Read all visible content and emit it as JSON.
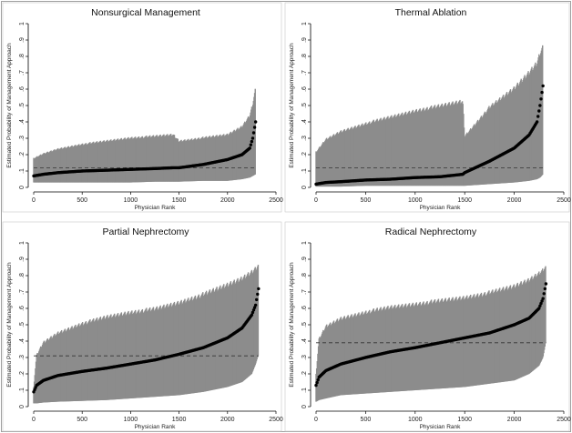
{
  "colors": {
    "figure_border": "#a0a0a0",
    "panel_background": "#ffffff",
    "interval_band": "#8c8c8c",
    "estimate_points": "#000000",
    "reference_line": "#333333",
    "axis": "#000000"
  },
  "chart_data": [
    {
      "type": "scatter",
      "title": "Nonsurgical Management",
      "xlabel": "Physician Rank",
      "ylabel": "Estimated Probability of Management Approach",
      "xlim": [
        0,
        2500
      ],
      "ylim": [
        0,
        1
      ],
      "x_ticks": [
        0,
        500,
        1000,
        1500,
        2000,
        2500
      ],
      "x_tick_labels": [
        "0",
        "500",
        "1000",
        "1500",
        "2000",
        "2500"
      ],
      "y_ticks": [
        0,
        0.1,
        0.2,
        0.3,
        0.4,
        0.5,
        0.6,
        0.7,
        0.8,
        0.9,
        1
      ],
      "y_tick_labels": [
        "0",
        ".1",
        ".2",
        ".3",
        ".4",
        ".5",
        ".6",
        ".7",
        ".8",
        ".9",
        "1"
      ],
      "grid": false,
      "reference_line": 0.12,
      "series": [
        {
          "x": [
            0,
            100,
            250,
            500,
            750,
            1000,
            1250,
            1440,
            1500,
            1750,
            2000,
            2150,
            2230,
            2260,
            2290
          ],
          "estimate": [
            0.07,
            0.08,
            0.09,
            0.1,
            0.105,
            0.11,
            0.115,
            0.12,
            0.12,
            0.14,
            0.17,
            0.2,
            0.24,
            0.3,
            0.4
          ],
          "lower": [
            0.03,
            0.03,
            0.03,
            0.03,
            0.03,
            0.03,
            0.035,
            0.035,
            0.035,
            0.04,
            0.04,
            0.05,
            0.06,
            0.07,
            0.08
          ],
          "upper": [
            0.18,
            0.21,
            0.24,
            0.27,
            0.29,
            0.31,
            0.32,
            0.33,
            0.29,
            0.31,
            0.33,
            0.38,
            0.45,
            0.52,
            0.62
          ]
        }
      ]
    },
    {
      "type": "scatter",
      "title": "Thermal Ablation",
      "xlabel": "Physician Rank",
      "ylabel": "Estimated Probability of Management Approach",
      "xlim": [
        0,
        2500
      ],
      "ylim": [
        0,
        1
      ],
      "x_ticks": [
        0,
        500,
        1000,
        1500,
        2000,
        2500
      ],
      "x_tick_labels": [
        "0",
        "500",
        "1000",
        "1500",
        "2000",
        "2500"
      ],
      "y_ticks": [
        0,
        0.1,
        0.2,
        0.3,
        0.4,
        0.5,
        0.6,
        0.7,
        0.8,
        0.9,
        1
      ],
      "y_tick_labels": [
        "0",
        ".1",
        ".2",
        ".3",
        ".4",
        ".5",
        ".6",
        ".7",
        ".8",
        ".9",
        "1"
      ],
      "grid": false,
      "reference_line": 0.12,
      "series": [
        {
          "x": [
            0,
            100,
            250,
            500,
            750,
            1000,
            1250,
            1480,
            1500,
            1750,
            2000,
            2150,
            2230,
            2260,
            2290
          ],
          "estimate": [
            0.02,
            0.03,
            0.035,
            0.045,
            0.05,
            0.06,
            0.065,
            0.08,
            0.09,
            0.16,
            0.24,
            0.32,
            0.4,
            0.5,
            0.62
          ],
          "lower": [
            0.005,
            0.005,
            0.005,
            0.01,
            0.01,
            0.01,
            0.01,
            0.01,
            0.01,
            0.02,
            0.03,
            0.04,
            0.05,
            0.06,
            0.08
          ],
          "upper": [
            0.22,
            0.3,
            0.35,
            0.4,
            0.44,
            0.48,
            0.51,
            0.54,
            0.32,
            0.5,
            0.62,
            0.72,
            0.78,
            0.84,
            0.88
          ]
        }
      ]
    },
    {
      "type": "scatter",
      "title": "Partial Nephrectomy",
      "xlabel": "Physician Rank",
      "ylabel": "Estimated Probability of Management Approach",
      "xlim": [
        0,
        2500
      ],
      "ylim": [
        0,
        1
      ],
      "x_ticks": [
        0,
        500,
        1000,
        1500,
        2000,
        2500
      ],
      "x_tick_labels": [
        "0",
        "500",
        "1000",
        "1500",
        "2000",
        "2500"
      ],
      "y_ticks": [
        0,
        0.1,
        0.2,
        0.3,
        0.4,
        0.5,
        0.6,
        0.7,
        0.8,
        0.9,
        1
      ],
      "y_tick_labels": [
        "0",
        ".1",
        ".2",
        ".3",
        ".4",
        ".5",
        ".6",
        ".7",
        ".8",
        ".9",
        "1"
      ],
      "grid": false,
      "reference_line": 0.31,
      "series": [
        {
          "x": [
            0,
            30,
            100,
            250,
            500,
            750,
            1000,
            1250,
            1500,
            1750,
            2000,
            2150,
            2250,
            2290,
            2320
          ],
          "estimate": [
            0.09,
            0.13,
            0.16,
            0.19,
            0.215,
            0.235,
            0.26,
            0.285,
            0.32,
            0.36,
            0.42,
            0.48,
            0.56,
            0.62,
            0.72
          ],
          "lower": [
            0.02,
            0.02,
            0.025,
            0.03,
            0.035,
            0.04,
            0.05,
            0.06,
            0.07,
            0.09,
            0.12,
            0.15,
            0.2,
            0.26,
            0.32
          ],
          "upper": [
            0.12,
            0.32,
            0.4,
            0.46,
            0.52,
            0.56,
            0.59,
            0.61,
            0.65,
            0.7,
            0.76,
            0.8,
            0.84,
            0.86,
            0.88
          ]
        }
      ]
    },
    {
      "type": "scatter",
      "title": "Radical Nephrectomy",
      "xlabel": "Physician Rank",
      "ylabel": "Estimated Probability of Management Approach",
      "xlim": [
        0,
        2500
      ],
      "ylim": [
        0,
        1
      ],
      "x_ticks": [
        0,
        500,
        1000,
        1500,
        2000,
        2500
      ],
      "x_tick_labels": [
        "0",
        "500",
        "1000",
        "1500",
        "2000",
        "2500"
      ],
      "y_ticks": [
        0,
        0.1,
        0.2,
        0.3,
        0.4,
        0.5,
        0.6,
        0.7,
        0.8,
        0.9,
        1
      ],
      "y_tick_labels": [
        "0",
        ".1",
        ".2",
        ".3",
        ".4",
        ".5",
        ".6",
        ".7",
        ".8",
        ".9",
        "1"
      ],
      "grid": false,
      "reference_line": 0.39,
      "series": [
        {
          "x": [
            0,
            30,
            100,
            250,
            500,
            750,
            1000,
            1250,
            1500,
            1750,
            2000,
            2150,
            2250,
            2290,
            2320
          ],
          "estimate": [
            0.13,
            0.18,
            0.22,
            0.26,
            0.3,
            0.335,
            0.36,
            0.39,
            0.42,
            0.45,
            0.5,
            0.54,
            0.6,
            0.66,
            0.75
          ],
          "lower": [
            0.03,
            0.04,
            0.05,
            0.07,
            0.08,
            0.09,
            0.1,
            0.11,
            0.12,
            0.14,
            0.16,
            0.2,
            0.25,
            0.3,
            0.4
          ],
          "upper": [
            0.2,
            0.42,
            0.5,
            0.55,
            0.59,
            0.62,
            0.64,
            0.66,
            0.68,
            0.71,
            0.75,
            0.79,
            0.83,
            0.85,
            0.87
          ]
        }
      ]
    }
  ]
}
